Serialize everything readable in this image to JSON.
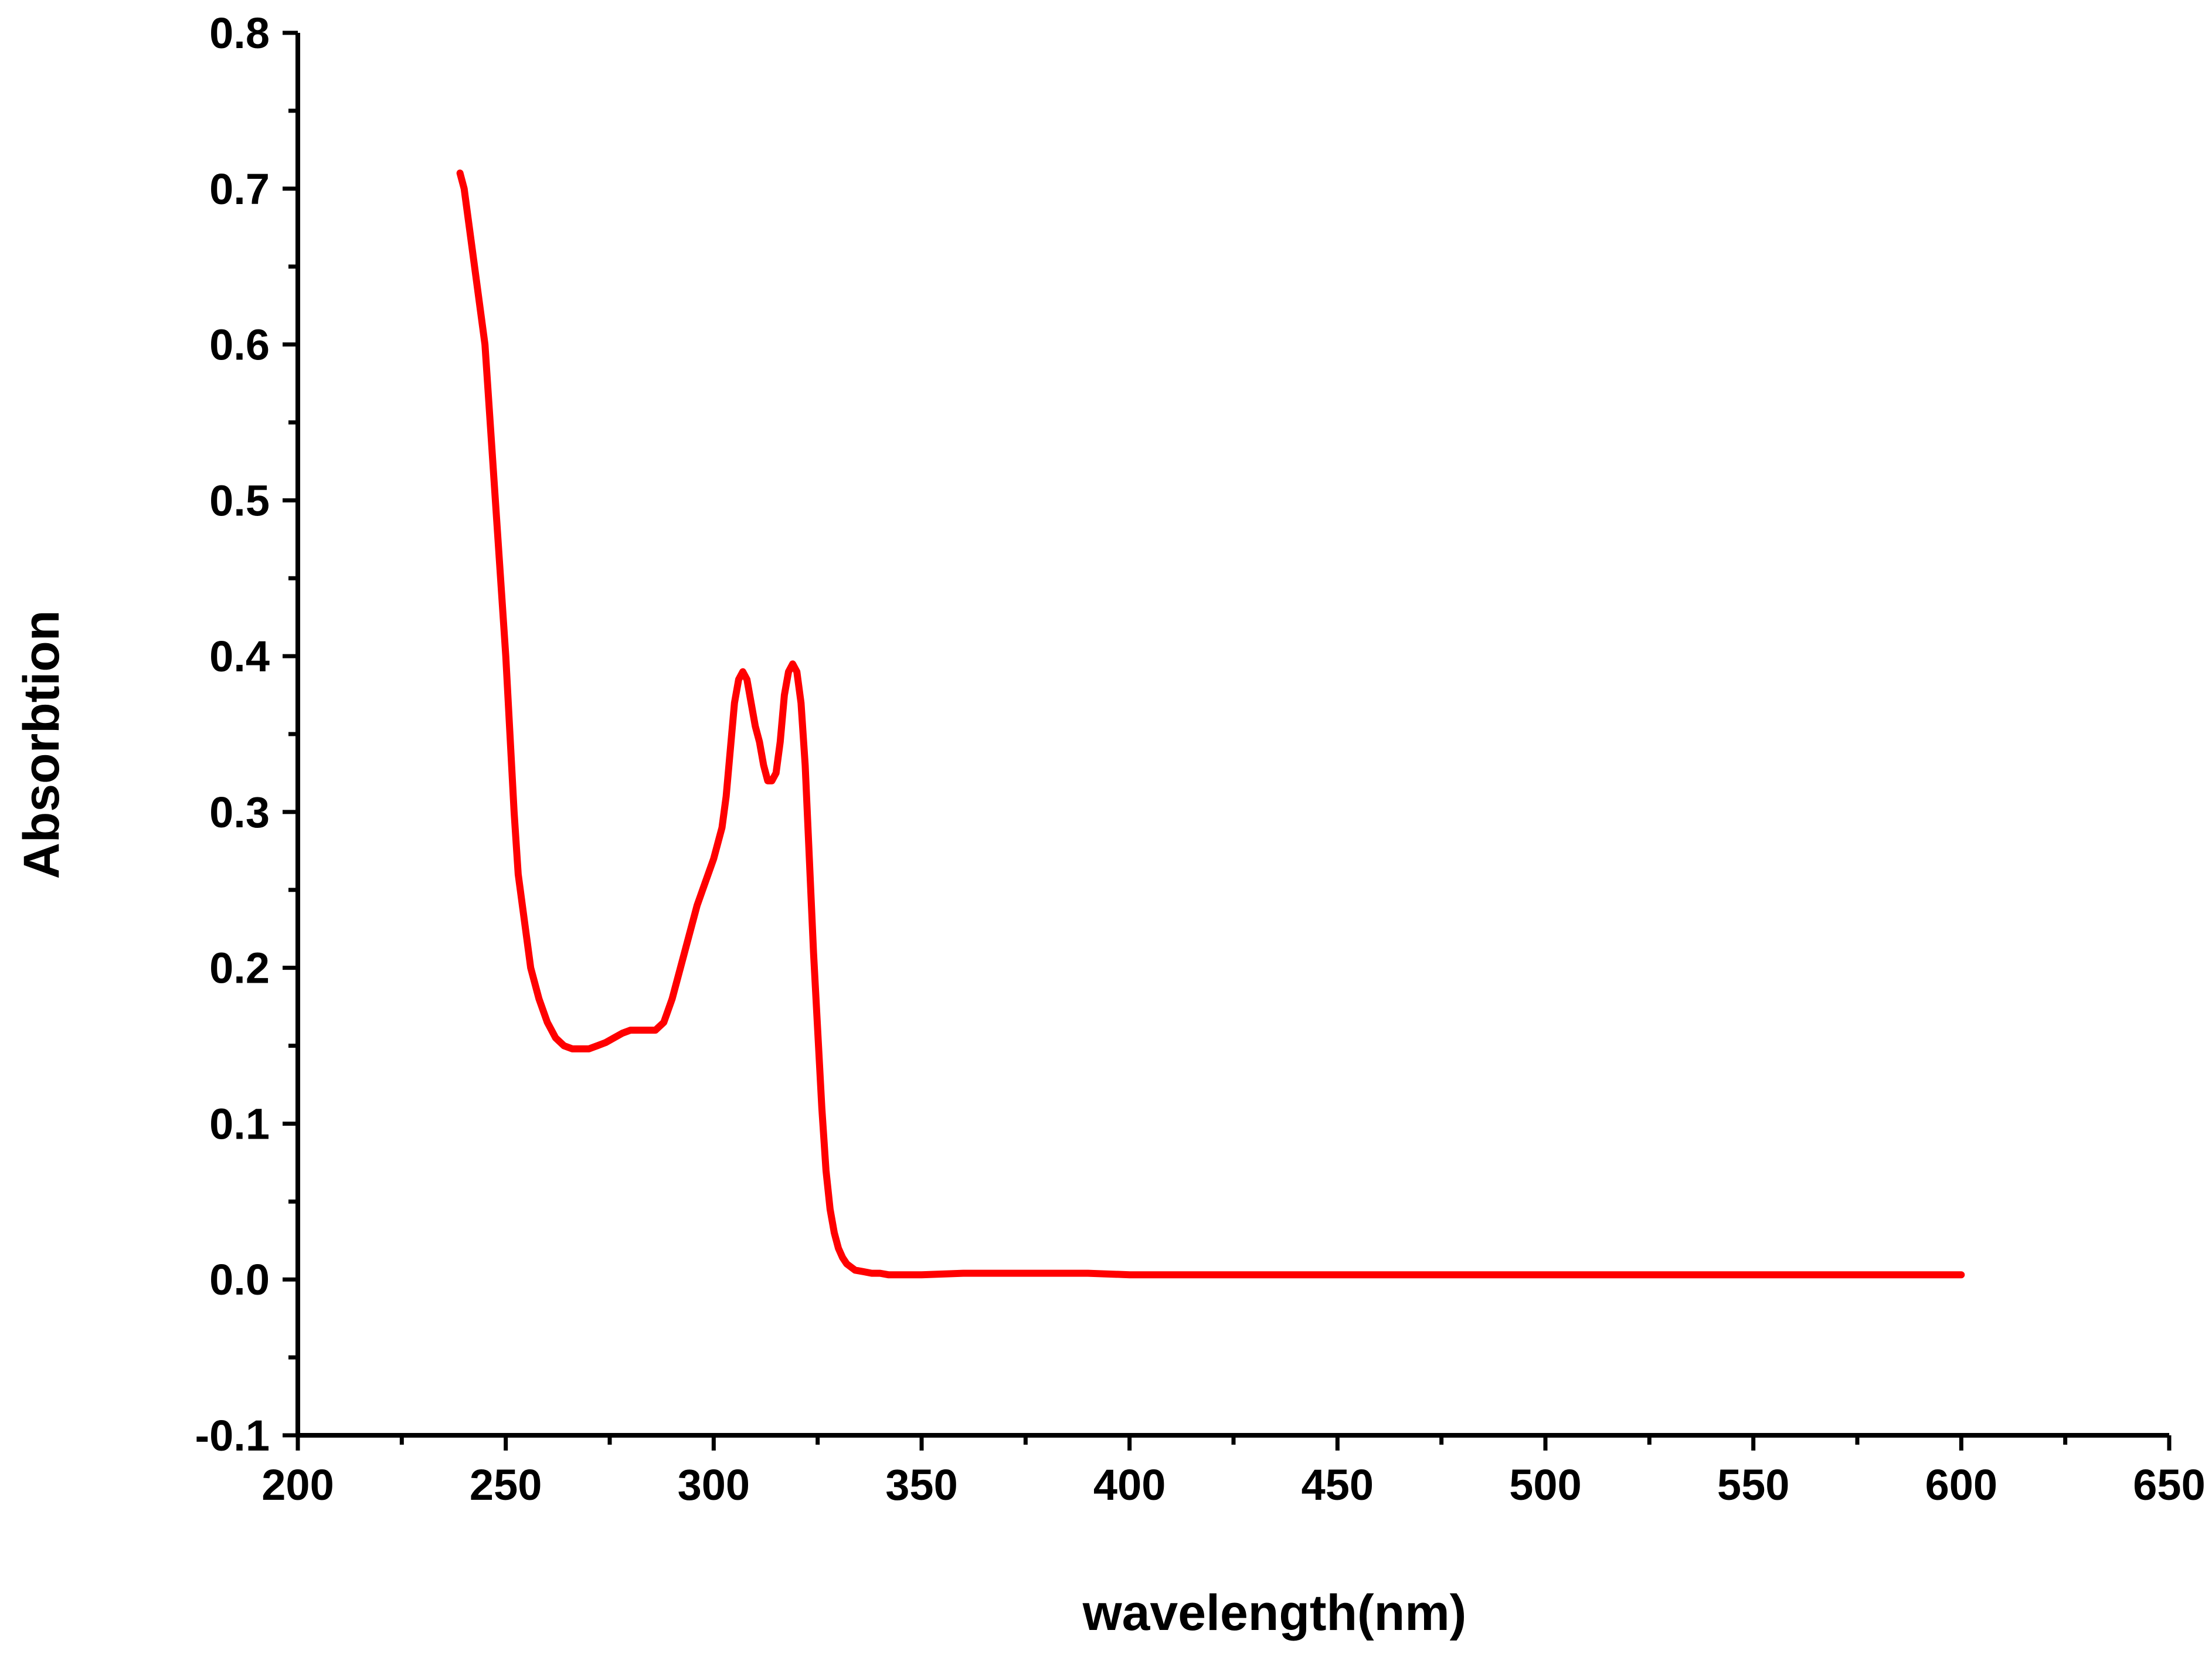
{
  "chart_data": {
    "type": "line",
    "title": "",
    "xlabel": "wavelength(nm)",
    "ylabel": "Absorbtion",
    "xlim": [
      200,
      650
    ],
    "ylim": [
      -0.1,
      0.8
    ],
    "x_ticks": [
      200,
      250,
      300,
      350,
      400,
      450,
      500,
      550,
      600,
      650
    ],
    "x_tick_labels": [
      "200",
      "250",
      "300",
      "350",
      "400",
      "450",
      "500",
      "550",
      "600",
      "650"
    ],
    "y_ticks": [
      -0.1,
      0.0,
      0.1,
      0.2,
      0.3,
      0.4,
      0.5,
      0.6,
      0.7,
      0.8
    ],
    "y_tick_labels": [
      "-0.1",
      "0.0",
      "0.1",
      "0.2",
      "0.3",
      "0.4",
      "0.5",
      "0.6",
      "0.7",
      "0.8"
    ],
    "grid": false,
    "legend": "none",
    "series": [
      {
        "color": "#ff0000",
        "x": [
          239,
          240,
          241,
          242,
          243,
          244,
          245,
          246,
          247,
          248,
          249,
          250,
          251,
          252,
          253,
          254,
          255,
          256,
          258,
          260,
          262,
          264,
          266,
          268,
          270,
          272,
          274,
          276,
          278,
          280,
          282,
          284,
          286,
          288,
          290,
          292,
          294,
          296,
          298,
          300,
          302,
          303,
          304,
          305,
          306,
          307,
          308,
          309,
          310,
          311,
          312,
          313,
          314,
          315,
          316,
          317,
          318,
          319,
          320,
          321,
          322,
          323,
          324,
          325,
          326,
          327,
          328,
          329,
          330,
          331,
          332,
          333,
          334,
          336,
          338,
          340,
          342,
          345,
          350,
          360,
          370,
          380,
          390,
          400,
          420,
          450,
          500,
          550,
          600
        ],
        "y": [
          0.71,
          0.7,
          0.68,
          0.66,
          0.64,
          0.62,
          0.6,
          0.56,
          0.52,
          0.48,
          0.44,
          0.4,
          0.35,
          0.3,
          0.26,
          0.24,
          0.22,
          0.2,
          0.18,
          0.165,
          0.155,
          0.15,
          0.148,
          0.148,
          0.148,
          0.15,
          0.152,
          0.155,
          0.158,
          0.16,
          0.16,
          0.16,
          0.16,
          0.165,
          0.18,
          0.2,
          0.22,
          0.24,
          0.255,
          0.27,
          0.29,
          0.31,
          0.34,
          0.37,
          0.385,
          0.39,
          0.385,
          0.37,
          0.355,
          0.345,
          0.33,
          0.32,
          0.32,
          0.325,
          0.345,
          0.375,
          0.39,
          0.395,
          0.39,
          0.37,
          0.33,
          0.27,
          0.21,
          0.16,
          0.11,
          0.07,
          0.045,
          0.03,
          0.02,
          0.014,
          0.01,
          0.008,
          0.006,
          0.005,
          0.004,
          0.004,
          0.003,
          0.003,
          0.003,
          0.004,
          0.004,
          0.004,
          0.004,
          0.003,
          0.003,
          0.003,
          0.003,
          0.003,
          0.003
        ]
      }
    ]
  }
}
